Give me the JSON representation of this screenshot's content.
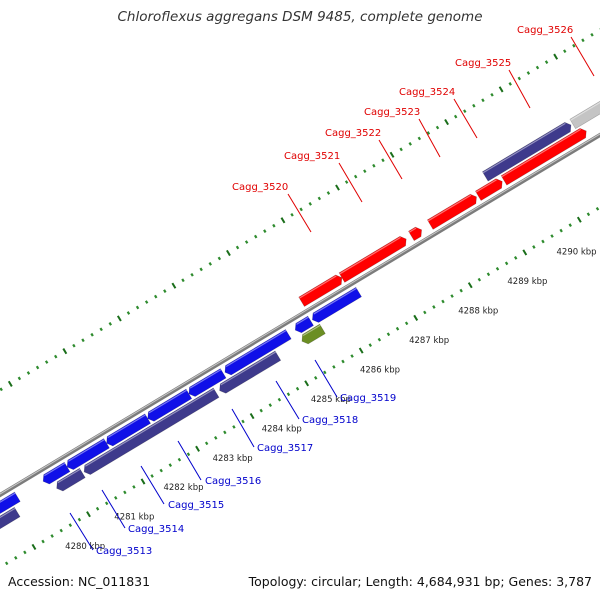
{
  "title": "Chloroflexus aggregans DSM 9485, complete genome",
  "footer": {
    "accession": "Accession: NC_011831",
    "summary": "Topology: circular; Length: 4,684,931 bp; Genes: 3,787"
  },
  "colors": {
    "forward_gene": "#ff0000",
    "forward_gene_dark": "#3e3a8c",
    "reverse_gene": "#1010e8",
    "reverse_gene_dark": "#3e3a8c",
    "rna_gene": "#6b8e23",
    "backbone": "#8c8c8c",
    "tick_minor": "#2e8b2e",
    "tick_major": "#1a6e1a",
    "forward_label": "#e00000",
    "reverse_label": "#0000cc"
  },
  "scale_labels": [
    "4280 kbp",
    "4281 kbp",
    "4282 kbp",
    "4283 kbp",
    "4284 kbp",
    "4285 kbp",
    "4286 kbp",
    "4287 kbp",
    "4288 kbp",
    "4289 kbp",
    "4290 kbp"
  ],
  "forward_genes": [
    {
      "id": "Cagg_3520",
      "label": "Cagg_3520"
    },
    {
      "id": "Cagg_3521",
      "label": "Cagg_3521"
    },
    {
      "id": "Cagg_3522",
      "label": "Cagg_3522"
    },
    {
      "id": "Cagg_3523",
      "label": "Cagg_3523"
    },
    {
      "id": "Cagg_3524",
      "label": "Cagg_3524"
    },
    {
      "id": "Cagg_3525",
      "label": "Cagg_3525"
    },
    {
      "id": "Cagg_3526",
      "label": "Cagg_3526"
    }
  ],
  "reverse_genes": [
    {
      "id": "Cagg_3513",
      "label": "Cagg_3513"
    },
    {
      "id": "Cagg_3514",
      "label": "Cagg_3514"
    },
    {
      "id": "Cagg_3515",
      "label": "Cagg_3515"
    },
    {
      "id": "Cagg_3516",
      "label": "Cagg_3516"
    },
    {
      "id": "Cagg_3517",
      "label": "Cagg_3517"
    },
    {
      "id": "Cagg_3518",
      "label": "Cagg_3518"
    },
    {
      "id": "Cagg_3519",
      "label": "Cagg_3519"
    }
  ]
}
